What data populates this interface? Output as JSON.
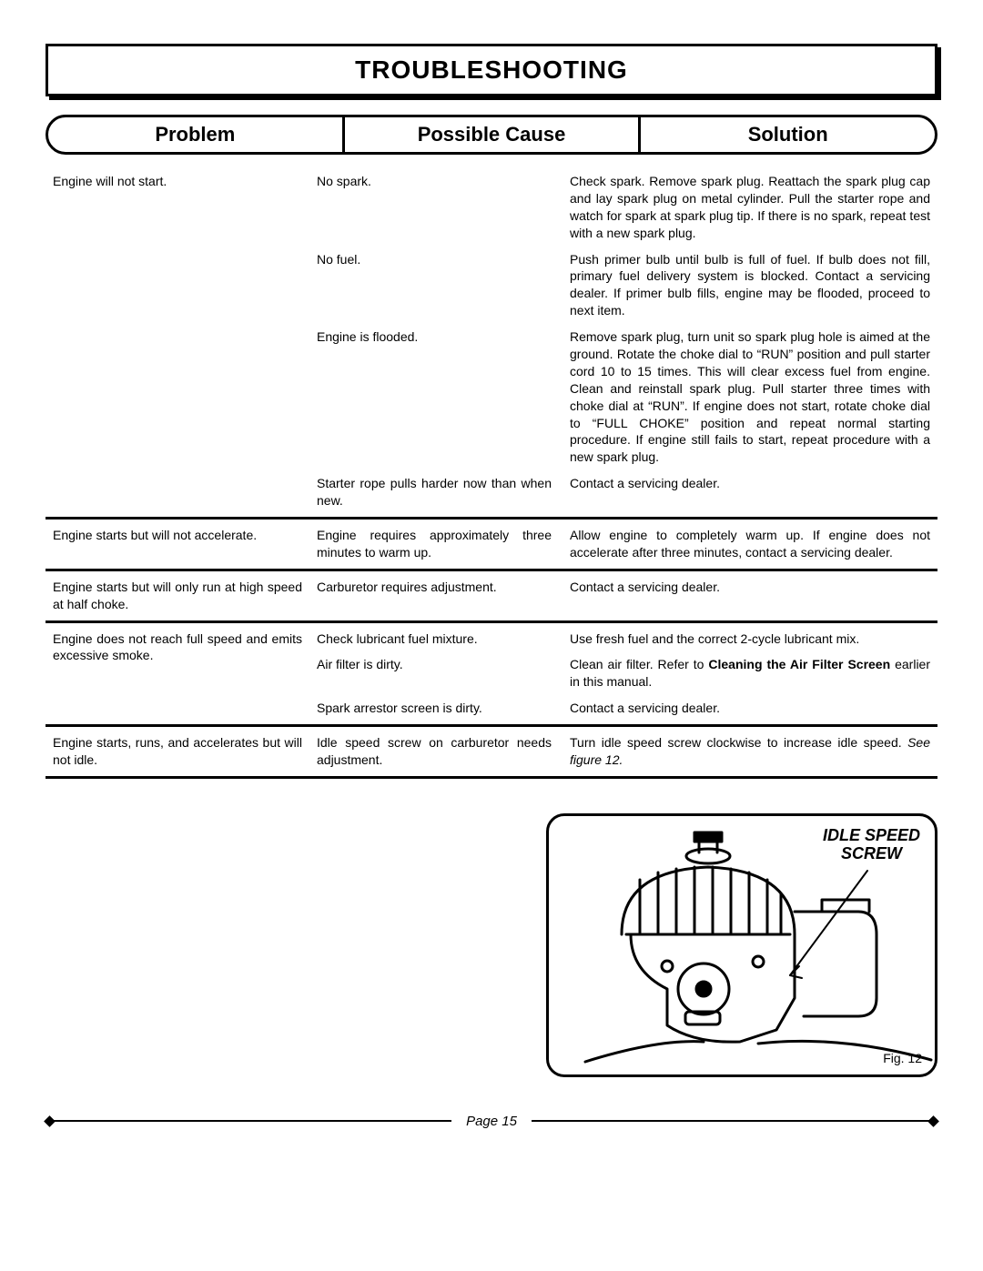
{
  "title": "TROUBLESHOOTING",
  "headers": {
    "problem": "Problem",
    "cause": "Possible Cause",
    "solution": "Solution"
  },
  "rows": [
    {
      "problem": "Engine will not start.",
      "items": [
        {
          "cause": "No spark.",
          "solution": "Check spark. Remove spark plug. Reattach the spark plug cap and lay spark plug on metal cylinder. Pull the starter rope and watch for spark at spark plug tip. If there is no spark, repeat test with a new spark plug."
        },
        {
          "cause": "No fuel.",
          "solution": "Push primer bulb until bulb is full of fuel. If bulb does not fill, primary fuel delivery system is blocked. Contact a servicing dealer. If primer bulb fills, engine may be flooded, proceed to next item."
        },
        {
          "cause": "Engine is flooded.",
          "solution": "Remove spark plug, turn unit so spark plug hole is aimed at the ground. Rotate the choke dial to “RUN” position and pull starter cord 10 to 15 times. This will clear excess fuel from engine. Clean and reinstall spark plug. Pull starter three times with choke dial at “RUN”. If engine does not start, rotate choke dial to “FULL CHOKE” position and repeat normal starting procedure. If engine still fails to start, repeat procedure with a new spark plug."
        },
        {
          "cause": "Starter rope pulls harder now than when new.",
          "solution": "Contact a servicing dealer."
        }
      ]
    },
    {
      "problem": "Engine starts but will not accelerate.",
      "items": [
        {
          "cause": "Engine requires approximately three minutes to warm up.",
          "solution": "Allow engine to completely warm up. If engine does not accelerate after three minutes, contact a servicing dealer."
        }
      ]
    },
    {
      "problem": "Engine starts but will only run at high speed at half choke.",
      "items": [
        {
          "cause": "Carburetor requires adjustment.",
          "solution": "Contact a servicing dealer."
        }
      ]
    },
    {
      "problem": "Engine does not reach full speed and emits excessive smoke.",
      "items": [
        {
          "cause": "Check lubricant fuel mixture.",
          "solution": "Use fresh fuel and the correct 2-cycle lubricant mix."
        },
        {
          "cause": "Air filter is dirty.",
          "solution_html": "Clean air filter. Refer to <b>Cleaning the Air Filter Screen</b> earlier in this manual."
        },
        {
          "cause": "Spark arrestor screen is dirty.",
          "solution": "Contact a servicing dealer."
        }
      ]
    },
    {
      "problem": "Engine starts, runs, and accelerates but will not idle.",
      "items": [
        {
          "cause": "Idle speed screw on carburetor needs adjustment.",
          "solution_html": "Turn idle speed screw clockwise to increase idle speed. <em>See figure 12.</em>"
        }
      ]
    }
  ],
  "figure": {
    "label_line1": "IDLE SPEED",
    "label_line2": "SCREW",
    "caption": "Fig. 12"
  },
  "footer": {
    "page": "Page 15"
  }
}
